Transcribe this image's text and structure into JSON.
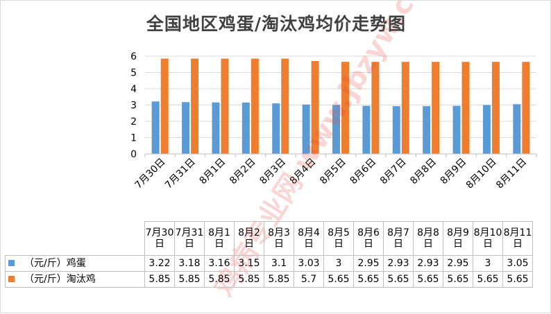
{
  "chart_data": {
    "type": "bar",
    "title": "全国地区鸡蛋/淘汰鸡均价走势图",
    "categories": [
      "7月30日",
      "7月31日",
      "8月1日",
      "8月2日",
      "8月3日",
      "8月4日",
      "8月5日",
      "8月6日",
      "8月7日",
      "8月8日",
      "8月9日",
      "8月10日",
      "8月11日"
    ],
    "series": [
      {
        "name": "（元/斤）鸡蛋",
        "color": "#5b9bd5",
        "values": [
          3.22,
          3.18,
          3.16,
          3.15,
          3.1,
          3.03,
          3,
          2.95,
          2.93,
          2.93,
          2.95,
          3,
          3.05
        ]
      },
      {
        "name": "（元/斤）淘汰鸡",
        "color": "#ed7d31",
        "values": [
          5.85,
          5.85,
          5.85,
          5.85,
          5.85,
          5.7,
          5.65,
          5.65,
          5.65,
          5.65,
          5.65,
          5.65,
          5.65
        ]
      }
    ],
    "ylim": [
      0,
      6
    ],
    "yticks": [
      "0",
      "1",
      "2",
      "3",
      "4",
      "5",
      "6"
    ],
    "grid": true,
    "legend": "data table below chart",
    "table": {
      "header": [
        "7月30日",
        "7月31日",
        "8月1日",
        "8月2日",
        "8月3日",
        "8月4日",
        "8月5日",
        "8月6日",
        "8月7日",
        "8月8日",
        "8月9日",
        "8月10日",
        "8月11日"
      ],
      "rows": [
        [
          "3.22",
          "3.18",
          "3.16",
          "3.15",
          "3.1",
          "3.03",
          "3",
          "2.95",
          "2.93",
          "2.93",
          "2.95",
          "3",
          "3.05"
        ],
        [
          "5.85",
          "5.85",
          "5.85",
          "5.85",
          "5.85",
          "5.7",
          "5.65",
          "5.65",
          "5.65",
          "5.65",
          "5.65",
          "5.65",
          "5.65"
        ]
      ]
    }
  },
  "watermark": {
    "text": "鸡病专业网 www.jbzyw.com",
    "color": "#e8473a"
  }
}
